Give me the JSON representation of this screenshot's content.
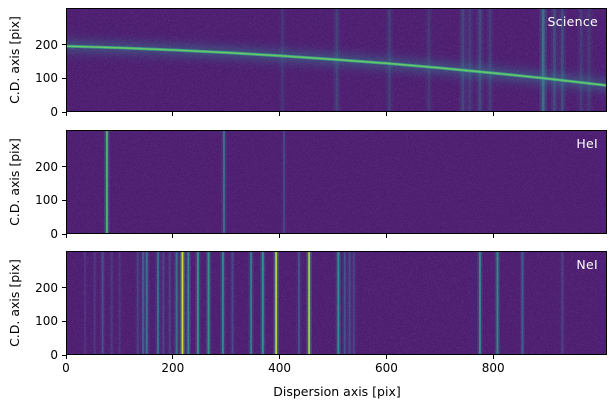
{
  "figure": {
    "kind": "spectroscopy-reduction-figure",
    "background": "#ffffff"
  },
  "x_axis": {
    "label": "Dispersion axis [pix]",
    "tick_values": [
      0,
      200,
      400,
      600,
      800
    ],
    "range": [
      0,
      1013
    ]
  },
  "y_axis": {
    "label": "C.D. axis [pix]",
    "tick_values": [
      0,
      100,
      200
    ],
    "range": [
      0,
      310
    ]
  },
  "colors": {
    "background": "#471168",
    "text": "#000000",
    "panel_label": "#ffffff",
    "spine": "#000000",
    "viridis_stops": [
      [
        0,
        "#440154"
      ],
      [
        0.1,
        "#482475"
      ],
      [
        0.2,
        "#414487"
      ],
      [
        0.3,
        "#355f8d"
      ],
      [
        0.4,
        "#2a788e"
      ],
      [
        0.5,
        "#21918c"
      ],
      [
        0.6,
        "#22a884"
      ],
      [
        0.7,
        "#44bf70"
      ],
      [
        0.8,
        "#7ad151"
      ],
      [
        0.9,
        "#bddf26"
      ],
      [
        1,
        "#fde725"
      ]
    ]
  },
  "chart_data": [
    {
      "type": "heatmap",
      "label": "Science",
      "description": "2D science frame with a curved spectral trace and faint sky emission lines",
      "xlim": [
        0,
        1013
      ],
      "ylim": [
        0,
        310
      ],
      "trace_points": [
        [
          0,
          197
        ],
        [
          100,
          192
        ],
        [
          200,
          185.5
        ],
        [
          300,
          177.5
        ],
        [
          400,
          168
        ],
        [
          500,
          157
        ],
        [
          600,
          145
        ],
        [
          700,
          131
        ],
        [
          800,
          115.5
        ],
        [
          900,
          99
        ],
        [
          1013,
          78
        ]
      ],
      "sky_lines": [
        {
          "x": 405,
          "i": 0.07
        },
        {
          "x": 507,
          "i": 0.11
        },
        {
          "x": 606,
          "i": 0.1
        },
        {
          "x": 680,
          "i": 0.08
        },
        {
          "x": 744,
          "i": 0.13
        },
        {
          "x": 757,
          "i": 0.1
        },
        {
          "x": 776,
          "i": 0.15
        },
        {
          "x": 795,
          "i": 0.1
        },
        {
          "x": 895,
          "i": 0.3
        },
        {
          "x": 916,
          "i": 0.15
        },
        {
          "x": 931,
          "i": 0.15
        },
        {
          "x": 966,
          "i": 0.09
        },
        {
          "x": 981,
          "i": 0.09
        }
      ]
    },
    {
      "type": "heatmap",
      "label": "HeI",
      "description": "HeI arc-lamp frame with vertical emission lines",
      "xlim": [
        0,
        1013
      ],
      "ylim": [
        0,
        310
      ],
      "lines": [
        {
          "x": 75,
          "i": 0.72
        },
        {
          "x": 295,
          "i": 0.45
        },
        {
          "x": 408,
          "i": 0.24
        }
      ]
    },
    {
      "type": "heatmap",
      "label": "NeI",
      "description": "NeI arc-lamp frame with many vertical emission lines",
      "xlim": [
        0,
        1013
      ],
      "ylim": [
        0,
        310
      ],
      "lines": [
        {
          "x": 34,
          "i": 0.15
        },
        {
          "x": 52,
          "i": 0.18
        },
        {
          "x": 67,
          "i": 0.3
        },
        {
          "x": 84,
          "i": 0.18
        },
        {
          "x": 99,
          "i": 0.16
        },
        {
          "x": 133,
          "i": 0.22
        },
        {
          "x": 143,
          "i": 0.38
        },
        {
          "x": 150,
          "i": 0.45
        },
        {
          "x": 171,
          "i": 0.45
        },
        {
          "x": 181,
          "i": 0.24
        },
        {
          "x": 193,
          "i": 0.22
        },
        {
          "x": 206,
          "i": 0.46
        },
        {
          "x": 217,
          "i": 0.88
        },
        {
          "x": 228,
          "i": 0.55
        },
        {
          "x": 246,
          "i": 0.6
        },
        {
          "x": 266,
          "i": 0.6
        },
        {
          "x": 293,
          "i": 0.55
        },
        {
          "x": 311,
          "i": 0.26
        },
        {
          "x": 346,
          "i": 0.5
        },
        {
          "x": 368,
          "i": 0.6
        },
        {
          "x": 393,
          "i": 0.85
        },
        {
          "x": 436,
          "i": 0.3
        },
        {
          "x": 455,
          "i": 0.82
        },
        {
          "x": 510,
          "i": 0.58
        },
        {
          "x": 522,
          "i": 0.3
        },
        {
          "x": 531,
          "i": 0.28
        },
        {
          "x": 539,
          "i": 0.24
        },
        {
          "x": 776,
          "i": 0.58
        },
        {
          "x": 809,
          "i": 0.55
        },
        {
          "x": 856,
          "i": 0.38
        },
        {
          "x": 931,
          "i": 0.22
        }
      ]
    }
  ]
}
